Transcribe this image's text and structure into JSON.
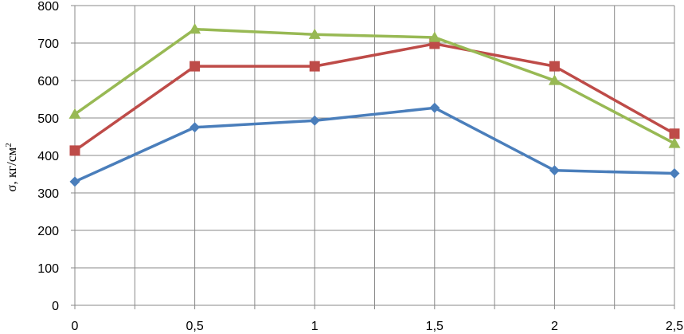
{
  "chart_data": {
    "type": "line",
    "title": "",
    "xlabel": "",
    "ylabel": "σ, кг/см²",
    "ylabel_parts": {
      "main": "σ, кг/см",
      "sup": "2"
    },
    "x": [
      0,
      0.5,
      1,
      1.5,
      2,
      2.5
    ],
    "x_tick_labels": [
      "0",
      "0,5",
      "1",
      "1,5",
      "2",
      "2,5"
    ],
    "x_minor_ticks": [
      0.25,
      0.75,
      1.25,
      1.75,
      2.25
    ],
    "y_ticks": [
      0,
      100,
      200,
      300,
      400,
      500,
      600,
      700,
      800
    ],
    "xlim": [
      0,
      2.5
    ],
    "ylim": [
      0,
      800
    ],
    "grid": true,
    "legend": "none",
    "series": [
      {
        "color": "#4a7ebb",
        "marker": "diamond",
        "values": [
          330,
          475,
          493,
          527,
          360,
          352
        ]
      },
      {
        "color": "#be4b48",
        "marker": "square",
        "values": [
          413,
          638,
          638,
          698,
          638,
          458
        ]
      },
      {
        "color": "#98b954",
        "marker": "triangle",
        "values": [
          510,
          737,
          723,
          715,
          600,
          432
        ]
      }
    ]
  }
}
